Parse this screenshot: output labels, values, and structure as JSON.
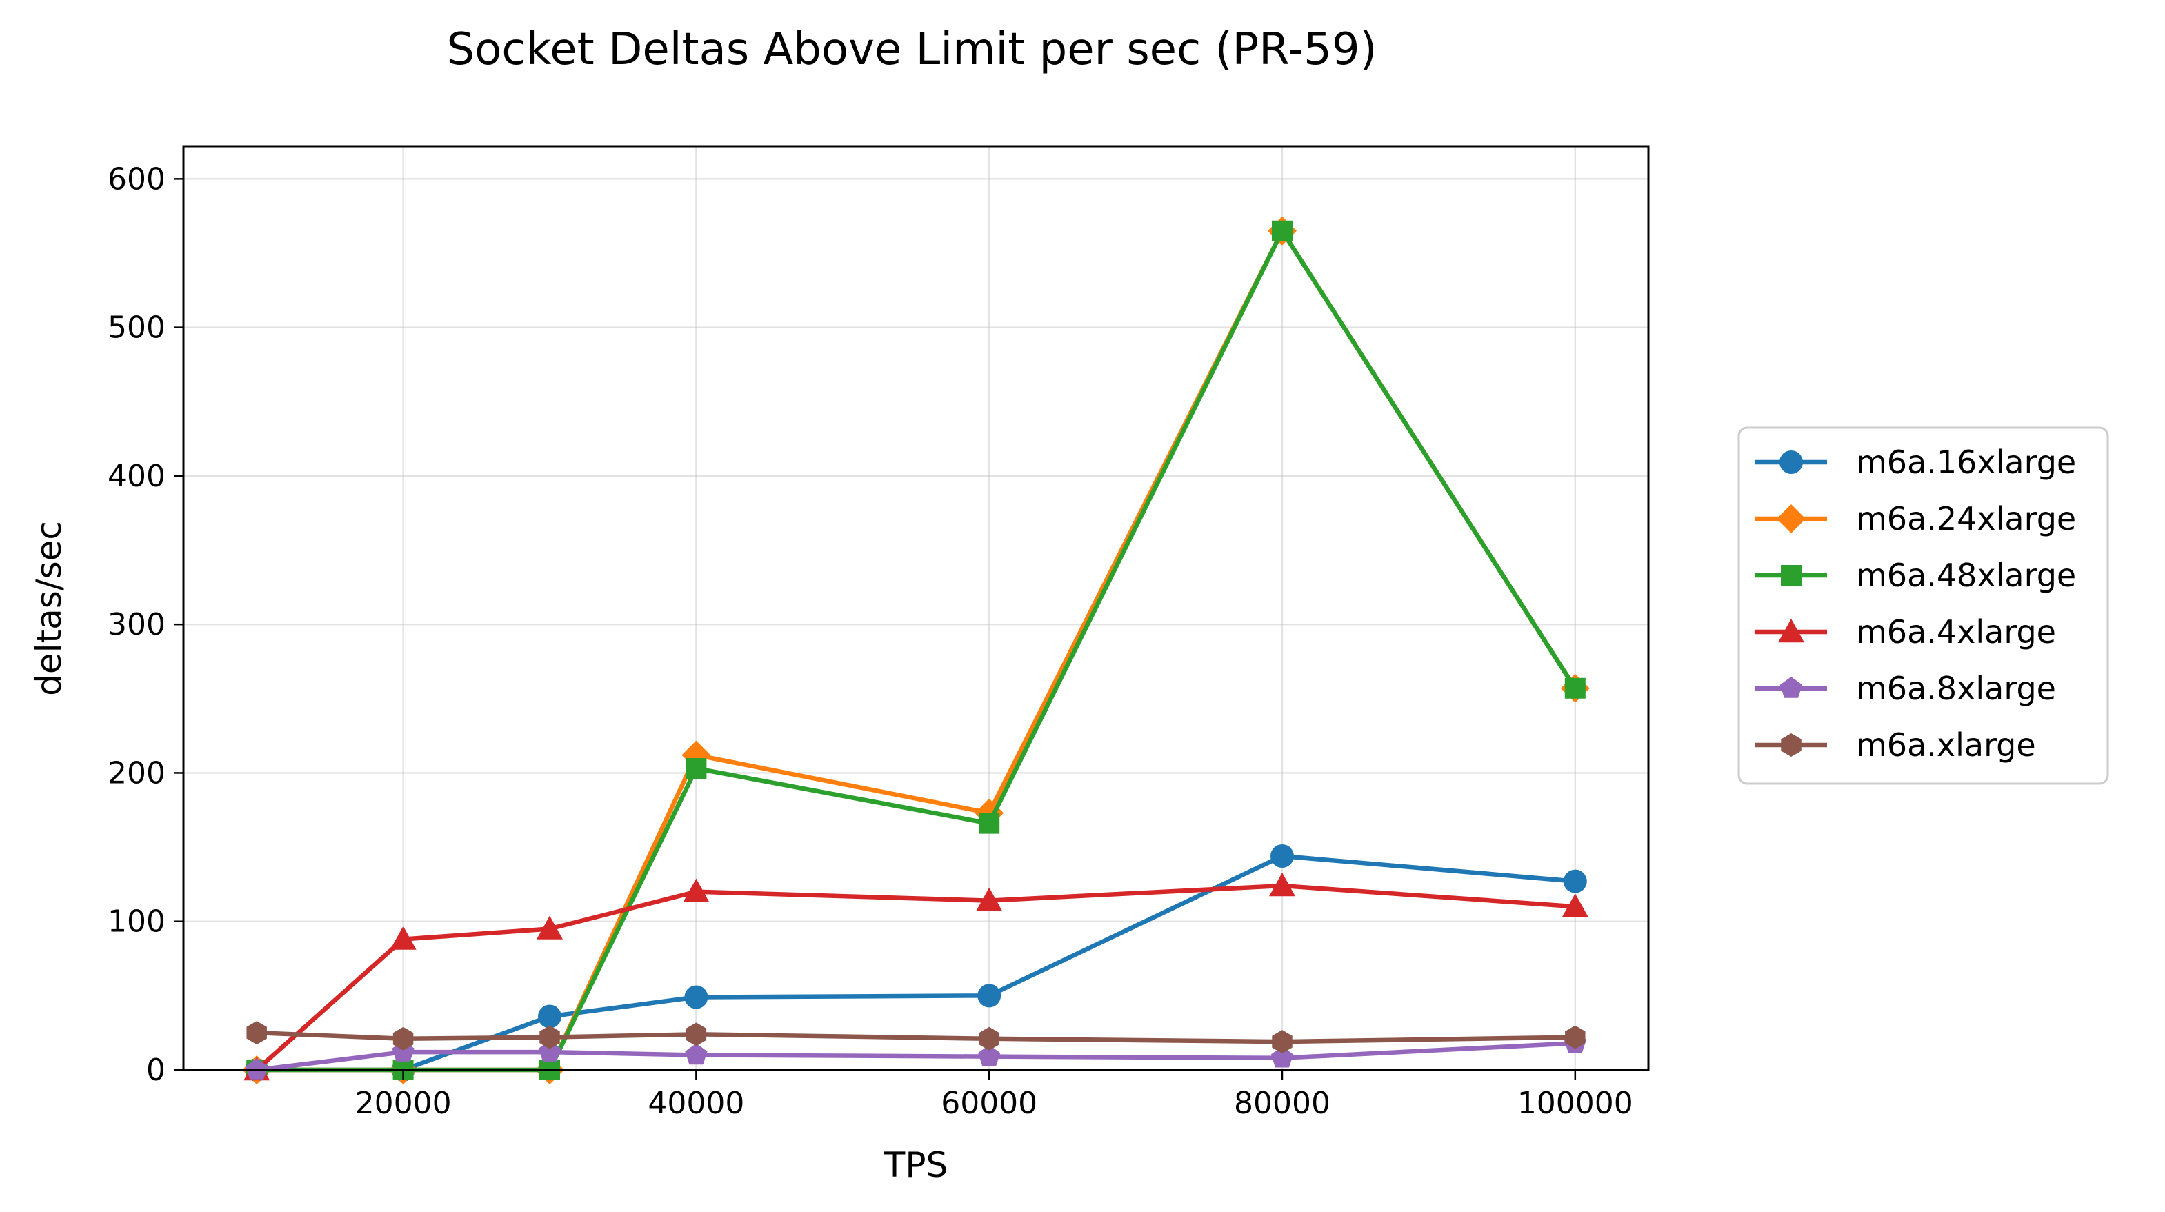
{
  "chart_data": {
    "type": "line",
    "title": "Socket Deltas Above Limit per sec (PR-59)",
    "xlabel": "TPS",
    "ylabel": "deltas/sec",
    "xlim": [
      5000,
      105000
    ],
    "ylim": [
      0,
      622
    ],
    "xticks": [
      20000,
      40000,
      60000,
      80000,
      100000
    ],
    "yticks": [
      0,
      100,
      200,
      300,
      400,
      500,
      600
    ],
    "grid": true,
    "legend_position": "right",
    "x": [
      10000,
      20000,
      30000,
      40000,
      60000,
      80000,
      100000
    ],
    "series": [
      {
        "name": "m6a.16xlarge",
        "color": "#1f77b4",
        "marker": "circle",
        "values": [
          0,
          0,
          36,
          49,
          50,
          144,
          127
        ]
      },
      {
        "name": "m6a.24xlarge",
        "color": "#ff7f0e",
        "marker": "diamond",
        "values": [
          0,
          0,
          0,
          212,
          173,
          565,
          257
        ]
      },
      {
        "name": "m6a.48xlarge",
        "color": "#2ca02c",
        "marker": "square",
        "values": [
          0,
          0,
          0,
          203,
          166,
          565,
          257
        ]
      },
      {
        "name": "m6a.4xlarge",
        "color": "#d62728",
        "marker": "triangle",
        "values": [
          0,
          88,
          95,
          120,
          114,
          124,
          110
        ]
      },
      {
        "name": "m6a.8xlarge",
        "color": "#9467bd",
        "marker": "pentagon",
        "values": [
          0,
          12,
          12,
          10,
          9,
          8,
          18
        ]
      },
      {
        "name": "m6a.xlarge",
        "color": "#8c564b",
        "marker": "hexagon",
        "values": [
          25,
          21,
          22,
          24,
          21,
          19,
          22
        ]
      }
    ]
  }
}
